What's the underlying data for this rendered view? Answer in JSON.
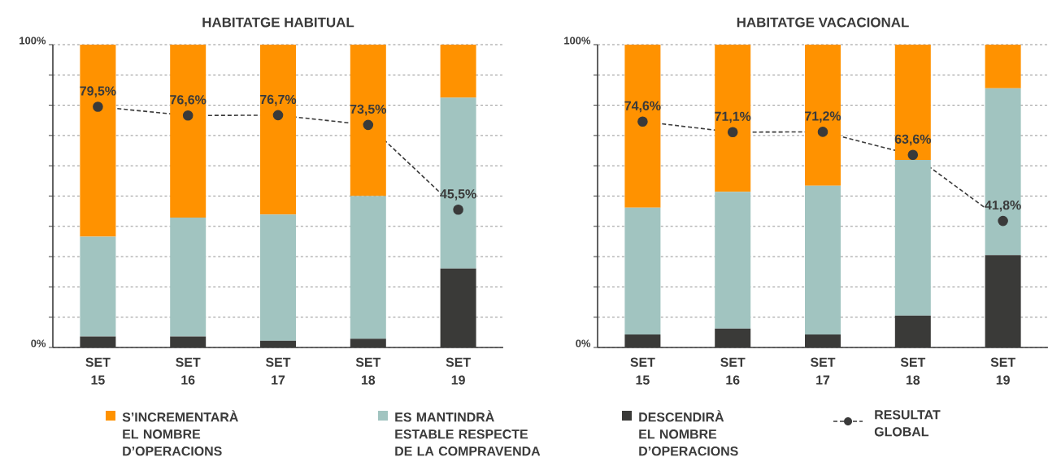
{
  "chart_data": [
    {
      "type": "bar",
      "title": "HABITATGE HABITUAL",
      "categories": [
        "SET 15",
        "SET 16",
        "SET 17",
        "SET 18",
        "SET 19"
      ],
      "stacked": true,
      "series": [
        {
          "name": "DESCENDIRÀ EL NOMBRE D’OPERACIONS",
          "color": "#3a3a38",
          "values": [
            3.6,
            3.6,
            2.2,
            2.9,
            26.1
          ]
        },
        {
          "name": "ES MANTINDRÀ ESTABLE RESPECTE DE LA COMPRAVENDA",
          "color": "#a1c4c0",
          "values": [
            33.0,
            39.3,
            41.7,
            47.1,
            56.4
          ]
        },
        {
          "name": "S’INCREMENTARÀ EL NOMBRE D’OPERACIONS",
          "color": "#ff9200",
          "values": [
            63.4,
            57.1,
            56.1,
            50.0,
            17.5
          ]
        },
        {
          "type": "line",
          "name": "RESULTAT GLOBAL",
          "color": "#3a3a3a",
          "marker": "circle",
          "line_style": "dashed",
          "values": [
            79.5,
            76.6,
            76.7,
            73.5,
            45.5
          ],
          "value_labels": [
            "79,5%",
            "76,6%",
            "76,7%",
            "73,5%",
            "45,5%"
          ]
        }
      ],
      "ylim": [
        0,
        100
      ],
      "yticks": [
        {
          "value": 0,
          "label": "0%"
        },
        {
          "value": 10,
          "label": null
        },
        {
          "value": 20,
          "label": null
        },
        {
          "value": 30,
          "label": null
        },
        {
          "value": 40,
          "label": null
        },
        {
          "value": 50,
          "label": null
        },
        {
          "value": 60,
          "label": null
        },
        {
          "value": 70,
          "label": null
        },
        {
          "value": 80,
          "label": null
        },
        {
          "value": 90,
          "label": null
        },
        {
          "value": 100,
          "label": "100%"
        }
      ],
      "grid": "y",
      "legend": "bottom"
    },
    {
      "type": "bar",
      "title": "HABITATGE VACACIONAL",
      "categories": [
        "SET 15",
        "SET 16",
        "SET 17",
        "SET 18",
        "SET 19"
      ],
      "stacked": true,
      "series": [
        {
          "color": "#3a3a38",
          "values": [
            4.3,
            6.2,
            4.3,
            10.5,
            30.5
          ]
        },
        {
          "color": "#a1c4c0",
          "values": [
            41.9,
            45.2,
            49.1,
            51.4,
            55.1
          ]
        },
        {
          "color": "#ff9200",
          "values": [
            53.8,
            48.6,
            46.6,
            38.1,
            14.4
          ]
        },
        {
          "type": "line",
          "color": "#3a3a3a",
          "marker": "circle",
          "line_style": "dashed",
          "values": [
            74.6,
            71.1,
            71.2,
            63.6,
            41.8
          ],
          "value_labels": [
            "74,6%",
            "71,1%",
            "71,2%",
            "63,6%",
            "41,8%"
          ]
        }
      ],
      "ylim": [
        0,
        100
      ],
      "yticks": [
        {
          "value": 0,
          "label": "0%"
        },
        {
          "value": 10,
          "label": null
        },
        {
          "value": 20,
          "label": null
        },
        {
          "value": 30,
          "label": null
        },
        {
          "value": 40,
          "label": null
        },
        {
          "value": 50,
          "label": null
        },
        {
          "value": 60,
          "label": null
        },
        {
          "value": 70,
          "label": null
        },
        {
          "value": 80,
          "label": null
        },
        {
          "value": 90,
          "label": null
        },
        {
          "value": 100,
          "label": "100%"
        }
      ],
      "grid": "y"
    }
  ]
}
